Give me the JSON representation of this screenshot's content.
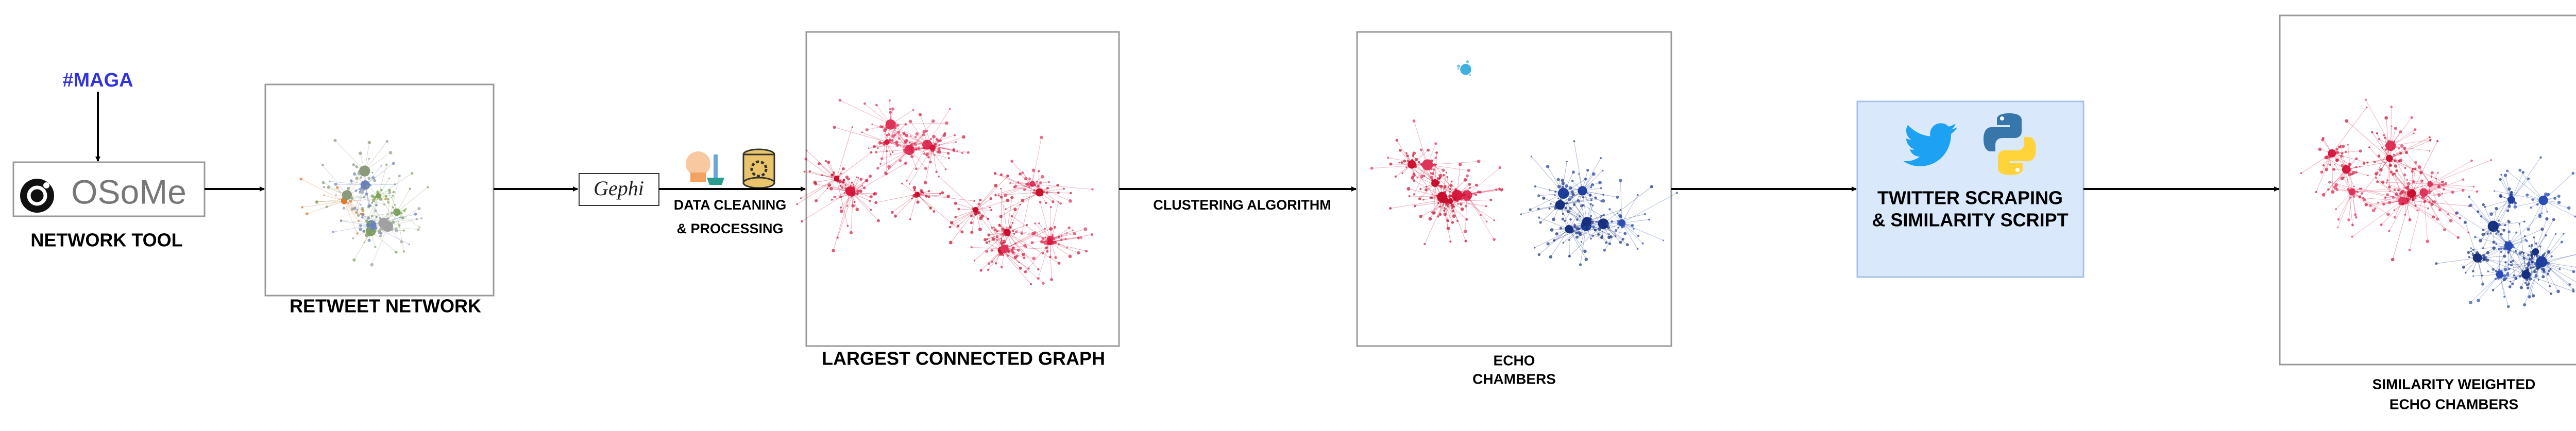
{
  "hashtag": "#MAGA",
  "network_tool": {
    "logo": "OSoMe",
    "label": "NETWORK TOOL"
  },
  "retweet_network": {
    "label": "RETWEET NETWORK"
  },
  "gephi": {
    "logo": "Gephi"
  },
  "data_cleaning": {
    "label_line1": "DATA CLEANING",
    "label_line2": "& PROCESSING"
  },
  "largest_connected_graph": {
    "label": "LARGEST CONNECTED GRAPH"
  },
  "clustering": {
    "label": "CLUSTERING ALGORITHM"
  },
  "echo_chambers": {
    "label_line1": "ECHO",
    "label_line2": "CHAMBERS"
  },
  "scraping": {
    "label_line1": "TWITTER SCRAPING",
    "label_line2": "& SIMILARITY SCRIPT"
  },
  "similarity_echo_chambers": {
    "label_line1": "SIMILARITY WEIGHTED",
    "label_line2": "ECHO CHAMBERS"
  }
}
